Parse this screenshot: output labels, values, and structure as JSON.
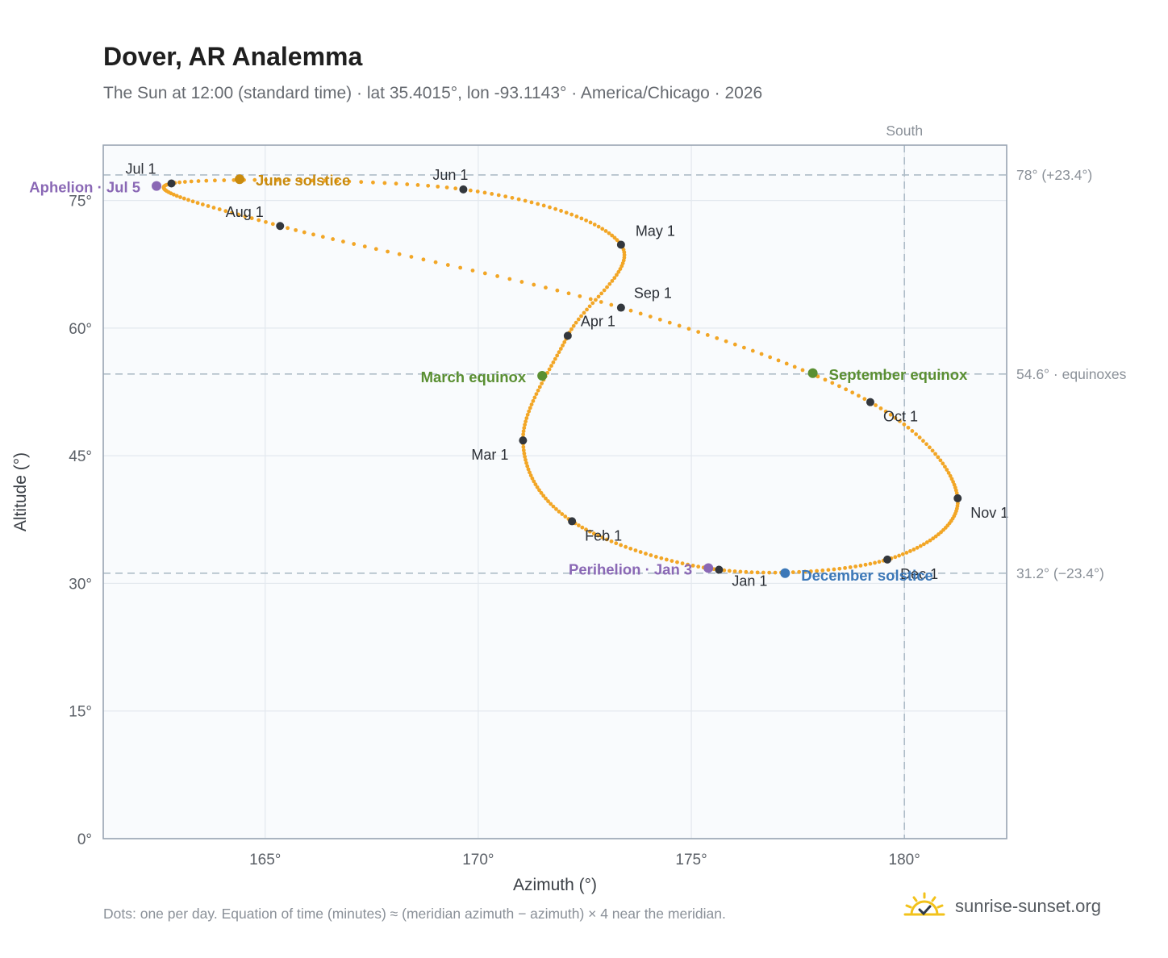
{
  "header": {
    "title": "Dover, AR Analemma",
    "subtitle": "The Sun at 12:00 (standard time) · lat 35.4015°, lon -93.1143° · America/Chicago · 2026"
  },
  "footer": {
    "note": "Dots: one per day. Equation of time (minutes) ≈ (meridian azimuth − azimuth) × 4 near the meridian.",
    "brand": "sunrise-sunset.org"
  },
  "colors": {
    "path": "#f2a626",
    "month_dot": "#33373d",
    "solstice_june": "#c98b0f",
    "solstice_december": "#3c78b8",
    "equinox": "#5a8f32",
    "apsis": "#8a68b5",
    "plot_bg": "#f9fbfd",
    "grid": "#e3e8ee",
    "reference_line": "#aebcc7"
  },
  "chart_data": {
    "type": "scatter",
    "title": "Dover, AR Analemma",
    "xlabel": "Azimuth (°)",
    "ylabel": "Altitude (°)",
    "xlim": [
      161.2,
      182.4
    ],
    "ylim": [
      0,
      81.5
    ],
    "xticks": [
      165,
      170,
      175,
      180
    ],
    "xtick_labels": [
      "165°",
      "170°",
      "175°",
      "180°"
    ],
    "yticks": [
      0,
      15,
      30,
      45,
      60,
      75
    ],
    "ytick_labels": [
      "0°",
      "15°",
      "30°",
      "45°",
      "60°",
      "75°"
    ],
    "grid": true,
    "meridian": {
      "azimuth": 180,
      "label": "South"
    },
    "reference_lines": [
      {
        "altitude": 78.0,
        "label": "78° (+23.4°)"
      },
      {
        "altitude": 54.6,
        "label": "54.6° · equinoxes"
      },
      {
        "altitude": 31.2,
        "label": "31.2° (−23.4°)"
      }
    ],
    "month_points": [
      {
        "label": "Jan 1",
        "az": 175.65,
        "alt": 31.6
      },
      {
        "label": "Feb 1",
        "az": 172.2,
        "alt": 37.3
      },
      {
        "label": "Mar 1",
        "az": 171.05,
        "alt": 46.8
      },
      {
        "label": "Apr 1",
        "az": 172.1,
        "alt": 59.1
      },
      {
        "label": "May 1",
        "az": 173.35,
        "alt": 69.8
      },
      {
        "label": "Jun 1",
        "az": 169.65,
        "alt": 76.3
      },
      {
        "label": "Jul 1",
        "az": 162.8,
        "alt": 77.0
      },
      {
        "label": "Aug 1",
        "az": 165.35,
        "alt": 72.0
      },
      {
        "label": "Sep 1",
        "az": 173.35,
        "alt": 62.4
      },
      {
        "label": "Oct 1",
        "az": 179.2,
        "alt": 51.3
      },
      {
        "label": "Nov 1",
        "az": 181.25,
        "alt": 40.0
      },
      {
        "label": "Dec 1",
        "az": 179.6,
        "alt": 32.8
      }
    ],
    "events": [
      {
        "label": "June solstice",
        "az": 164.4,
        "alt": 77.5,
        "kind": "solstice_june"
      },
      {
        "label": "December solstice",
        "az": 177.2,
        "alt": 31.2,
        "kind": "solstice_december"
      },
      {
        "label": "March equinox",
        "az": 171.5,
        "alt": 54.4,
        "kind": "equinox"
      },
      {
        "label": "September equinox",
        "az": 177.85,
        "alt": 54.7,
        "kind": "equinox"
      },
      {
        "label": "Aphelion · Jul 5",
        "az": 162.45,
        "alt": 76.7,
        "kind": "apsis"
      },
      {
        "label": "Perihelion · Jan 3",
        "az": 175.4,
        "alt": 31.8,
        "kind": "apsis"
      }
    ]
  }
}
